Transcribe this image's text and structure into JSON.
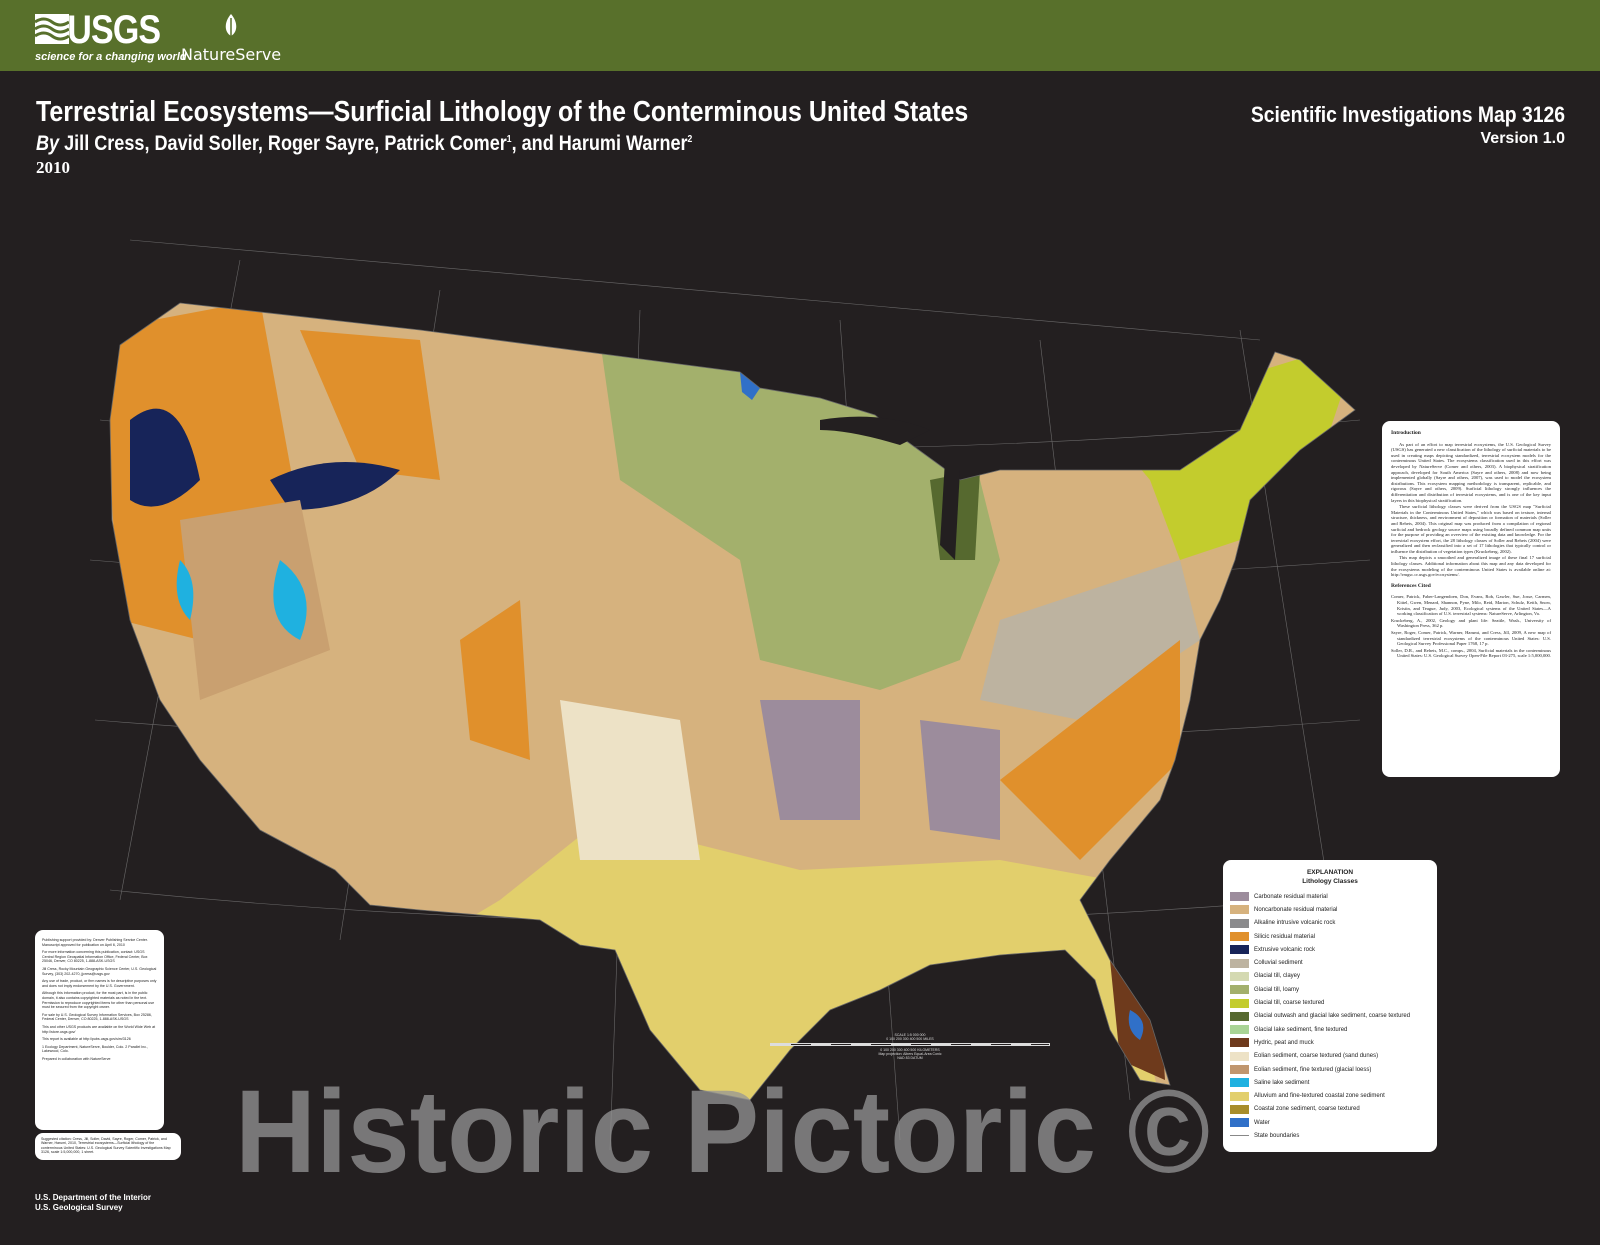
{
  "header": {
    "usgs_logo": "USGS",
    "usgs_tagline": "science for a changing world",
    "partner_logo": "NatureServe",
    "bar_color": "#58702b"
  },
  "title": "Terrestrial Ecosystems—Surficial Lithology of the Conterminous United States",
  "authors": {
    "by": "By",
    "names": "Jill Cress, David Soller, Roger Sayre, Patrick Comer",
    "sup1": "1",
    "and": ", and Harumi Warner",
    "sup2": "2"
  },
  "year": "2010",
  "series": {
    "name": "Scientific Investigations Map 3126",
    "version": "Version 1.0"
  },
  "intro": {
    "heading": "Introduction",
    "paragraphs": [
      "As part of an effort to map terrestrial ecosystems, the U.S. Geological Survey (USGS) has generated a new classification of the lithology of surficial materials to be used in creating maps depicting standardized, terrestrial ecosystem models for the conterminous United States. The ecosystems classification used in this effort was developed by NatureServe (Comer and others, 2003). A biophysical stratification approach, developed for South America (Sayre and others, 2008) and now being implemented globally (Sayre and others, 2007), was used to model the ecosystem distributions. This ecosystem mapping methodology is transparent, replicable, and rigorous (Sayre and others, 2009). Surficial lithology strongly influences the differentiation and distribution of terrestrial ecosystems, and is one of the key input layers in this biophysical stratification.",
      "These surficial lithology classes were derived from the USGS map \"Surficial Materials in the Conterminous United States,\" which was based on texture, internal structure, thickness, and environment of deposition or formation of materials (Soller and Reheis, 2004). This original map was produced from a compilation of regional surficial and bedrock geology source maps using broadly defined common map units for the purpose of providing an overview of the existing data and knowledge. For the terrestrial ecosystem effort, the 28 lithology classes of Soller and Reheis (2004) were generalized and then reclassified into a set of 17 lithologies that typically control or influence the distribution of vegetation types (Kruckeberg, 2002).",
      "This map depicts a smoothed and generalized image of these final 17 surficial lithology classes. Additional information about this map and any data developed for the ecosystems modeling of the conterminous United States is available online at: http://rmgsc.cr.usgs.gov/ecosystems/."
    ],
    "refs_heading": "References Cited",
    "refs": [
      "Comer, Patrick, Faber-Langendoen, Don, Evans, Rob, Gawler, Sue, Josse, Carmen, Kittel, Gwen, Menard, Shannon, Pyne, Milo, Reid, Marion, Schulz, Keith, Snow, Kristin, and Teague, Judy, 2003, Ecological systems of the United States—A working classification of U.S. terrestrial systems: NatureServe, Arlington, Va.",
      "Kruckeberg, A., 2002, Geology and plant life: Seattle, Wash., University of Washington Press, 362 p.",
      "Sayre, Roger, Comer, Patrick, Warner, Harumi, and Cress, Jill, 2009, A new map of standardized terrestrial ecosystems of the conterminous United States: U.S. Geological Survey Professional Paper 1768, 17 p.",
      "Soller, D.R., and Reheis, M.C., comps., 2004, Surficial materials in the conterminous United States: U.S. Geological Survey Open-File Report 03-275, scale 1:5,000,000."
    ]
  },
  "legend": {
    "title": "EXPLANATION",
    "subtitle": "Lithology Classes",
    "items": [
      {
        "label": "Carbonate residual material",
        "color": "#9c8c9c"
      },
      {
        "label": "Noncarbonate residual material",
        "color": "#d6b27e"
      },
      {
        "label": "Alkaline intrusive volcanic rock",
        "color": "#8a8a8c"
      },
      {
        "label": "Silicic residual material",
        "color": "#e0902c"
      },
      {
        "label": "Extrusive volcanic rock",
        "color": "#172459"
      },
      {
        "label": "Colluvial sediment",
        "color": "#bdb3a0"
      },
      {
        "label": "Glacial till, clayey",
        "color": "#d4d9b1"
      },
      {
        "label": "Glacial till, loamy",
        "color": "#a3b06c"
      },
      {
        "label": "Glacial till, coarse textured",
        "color": "#c3cc2d"
      },
      {
        "label": "Glacial outwash and glacial lake sediment, coarse textured",
        "color": "#56692f"
      },
      {
        "label": "Glacial lake sediment, fine textured",
        "color": "#a9d495"
      },
      {
        "label": "Hydric, peat and muck",
        "color": "#6e3a1c"
      },
      {
        "label": "Eolian sediment, coarse textured (sand dunes)",
        "color": "#ede2c6"
      },
      {
        "label": "Eolian sediment, fine textured (glacial loess)",
        "color": "#c0966e"
      },
      {
        "label": "Saline lake sediment",
        "color": "#1fb1e0"
      },
      {
        "label": "Alluvium and fine-textured coastal zone sediment",
        "color": "#e2cf6c"
      },
      {
        "label": "Coastal zone sediment, coarse textured",
        "color": "#a88d2a"
      },
      {
        "label": "Water",
        "color": "#3070c8"
      }
    ],
    "boundary_label": "State boundaries"
  },
  "info_box": [
    "Publishing support provided by: Denver Publishing Service Center. Manuscript approved for publication on April 6, 2010",
    "For more information concerning this publication, contact: USGS Central Region Geospatial Information Office, Federal Center, Box 25046, Denver, CO 80225, 1-888-ASK-USGS",
    "Jill Cress, Rocky Mountain Geographic Science Center, U.S. Geological Survey, (303) 202-4270, jjcress@usgs.gov",
    "Any use of trade, product, or firm names is for descriptive purposes only and does not imply endorsement by the U.S. Government.",
    "Although this information product, for the most part, is in the public domain, it also contains copyrighted materials as noted in the text. Permission to reproduce copyrighted items for other than personal use must be secured from the copyright owner.",
    "For sale by U.S. Geological Survey Information Services, Box 25286, Federal Center, Denver, CO 80225, 1-888-ASK-USGS",
    "This and other USGS products are available on the World Wide Web at http://store.usgs.gov/",
    "This report is available at http://pubs.usgs.gov/sim/3126",
    "1 Ecology Department, NatureServe, Boulder, Colo. 2 Parallel Inc., Lakewood, Colo.",
    "Prepared in collaboration with NatureServe"
  ],
  "citation": "Suggested citation: Cress, Jill, Soller, David, Sayre, Roger, Comer, Patrick, and Warner, Harumi, 2010, Terrestrial ecosystems—Surficial lithology of the conterminous United States: U.S. Geological Survey Scientific Investigations Map 3126, scale 1:5,000,000, 1 sheet.",
  "scale": {
    "label": "SCALE 1:5 000 000",
    "miles": "0 100 200 300 400 500 MILES",
    "km": "0 100 200 300 400 500 KILOMETERS",
    "projection": "Map projection: Albers Equal-Area Conic",
    "datum": "NAD 83 DATUM"
  },
  "footer": [
    "U.S. Department of the Interior",
    "U.S. Geological Survey"
  ],
  "watermark": "Historic Pictoric ©"
}
